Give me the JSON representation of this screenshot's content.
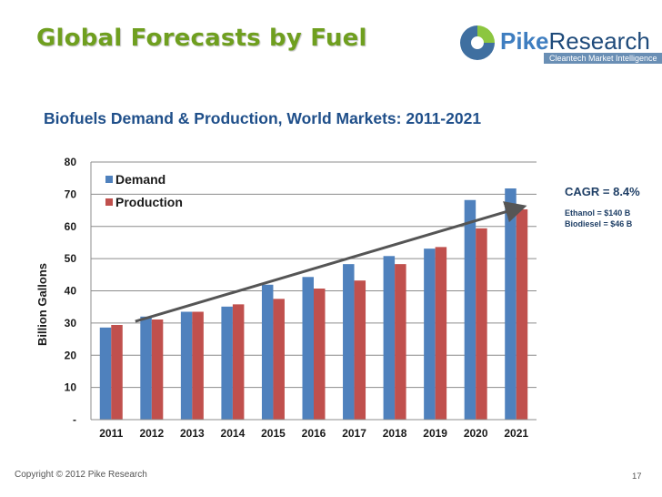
{
  "slide": {
    "title": "Global Forecasts by Fuel",
    "footer": "Copyright © 2012 Pike Research",
    "page_number": "17"
  },
  "logo": {
    "name_part1": "Pike",
    "name_part2": "Research",
    "tagline": "Cleantech Market Intelligence"
  },
  "annotations": {
    "cagr": "CAGR = 8.4%",
    "ethanol": "Ethanol = $140 B",
    "biodiesel": "Biodiesel = $46 B"
  },
  "colors": {
    "demand": "#4f81bd",
    "production": "#c0504d",
    "title_green": "#6f9f1f",
    "chart_title_blue": "#1f4f8a",
    "trend_arrow": "#555555"
  },
  "chart_data": {
    "type": "bar",
    "title": "Biofuels Demand & Production, World Markets: 2011-2021",
    "xlabel": "",
    "ylabel": "Billion Gallons",
    "categories": [
      "2011",
      "2012",
      "2013",
      "2014",
      "2015",
      "2016",
      "2017",
      "2018",
      "2019",
      "2020",
      "2021"
    ],
    "series": [
      {
        "name": "Demand",
        "values": [
          28.6,
          32.0,
          33.5,
          35.1,
          41.9,
          44.3,
          48.3,
          50.8,
          53.1,
          68.2,
          71.8
        ]
      },
      {
        "name": "Production",
        "values": [
          29.4,
          31.1,
          33.5,
          35.8,
          37.5,
          40.7,
          43.2,
          48.3,
          53.6,
          59.4,
          65.3
        ]
      }
    ],
    "ylim": [
      0,
      80
    ],
    "yticks": [
      "-",
      "10",
      "20",
      "30",
      "40",
      "50",
      "60",
      "70",
      "80"
    ],
    "grid": true,
    "legend": "top-left",
    "trend_arrow": {
      "from": {
        "x": "2012",
        "y": 30.5
      },
      "to": {
        "x": "2021",
        "y": 66.0
      }
    }
  }
}
